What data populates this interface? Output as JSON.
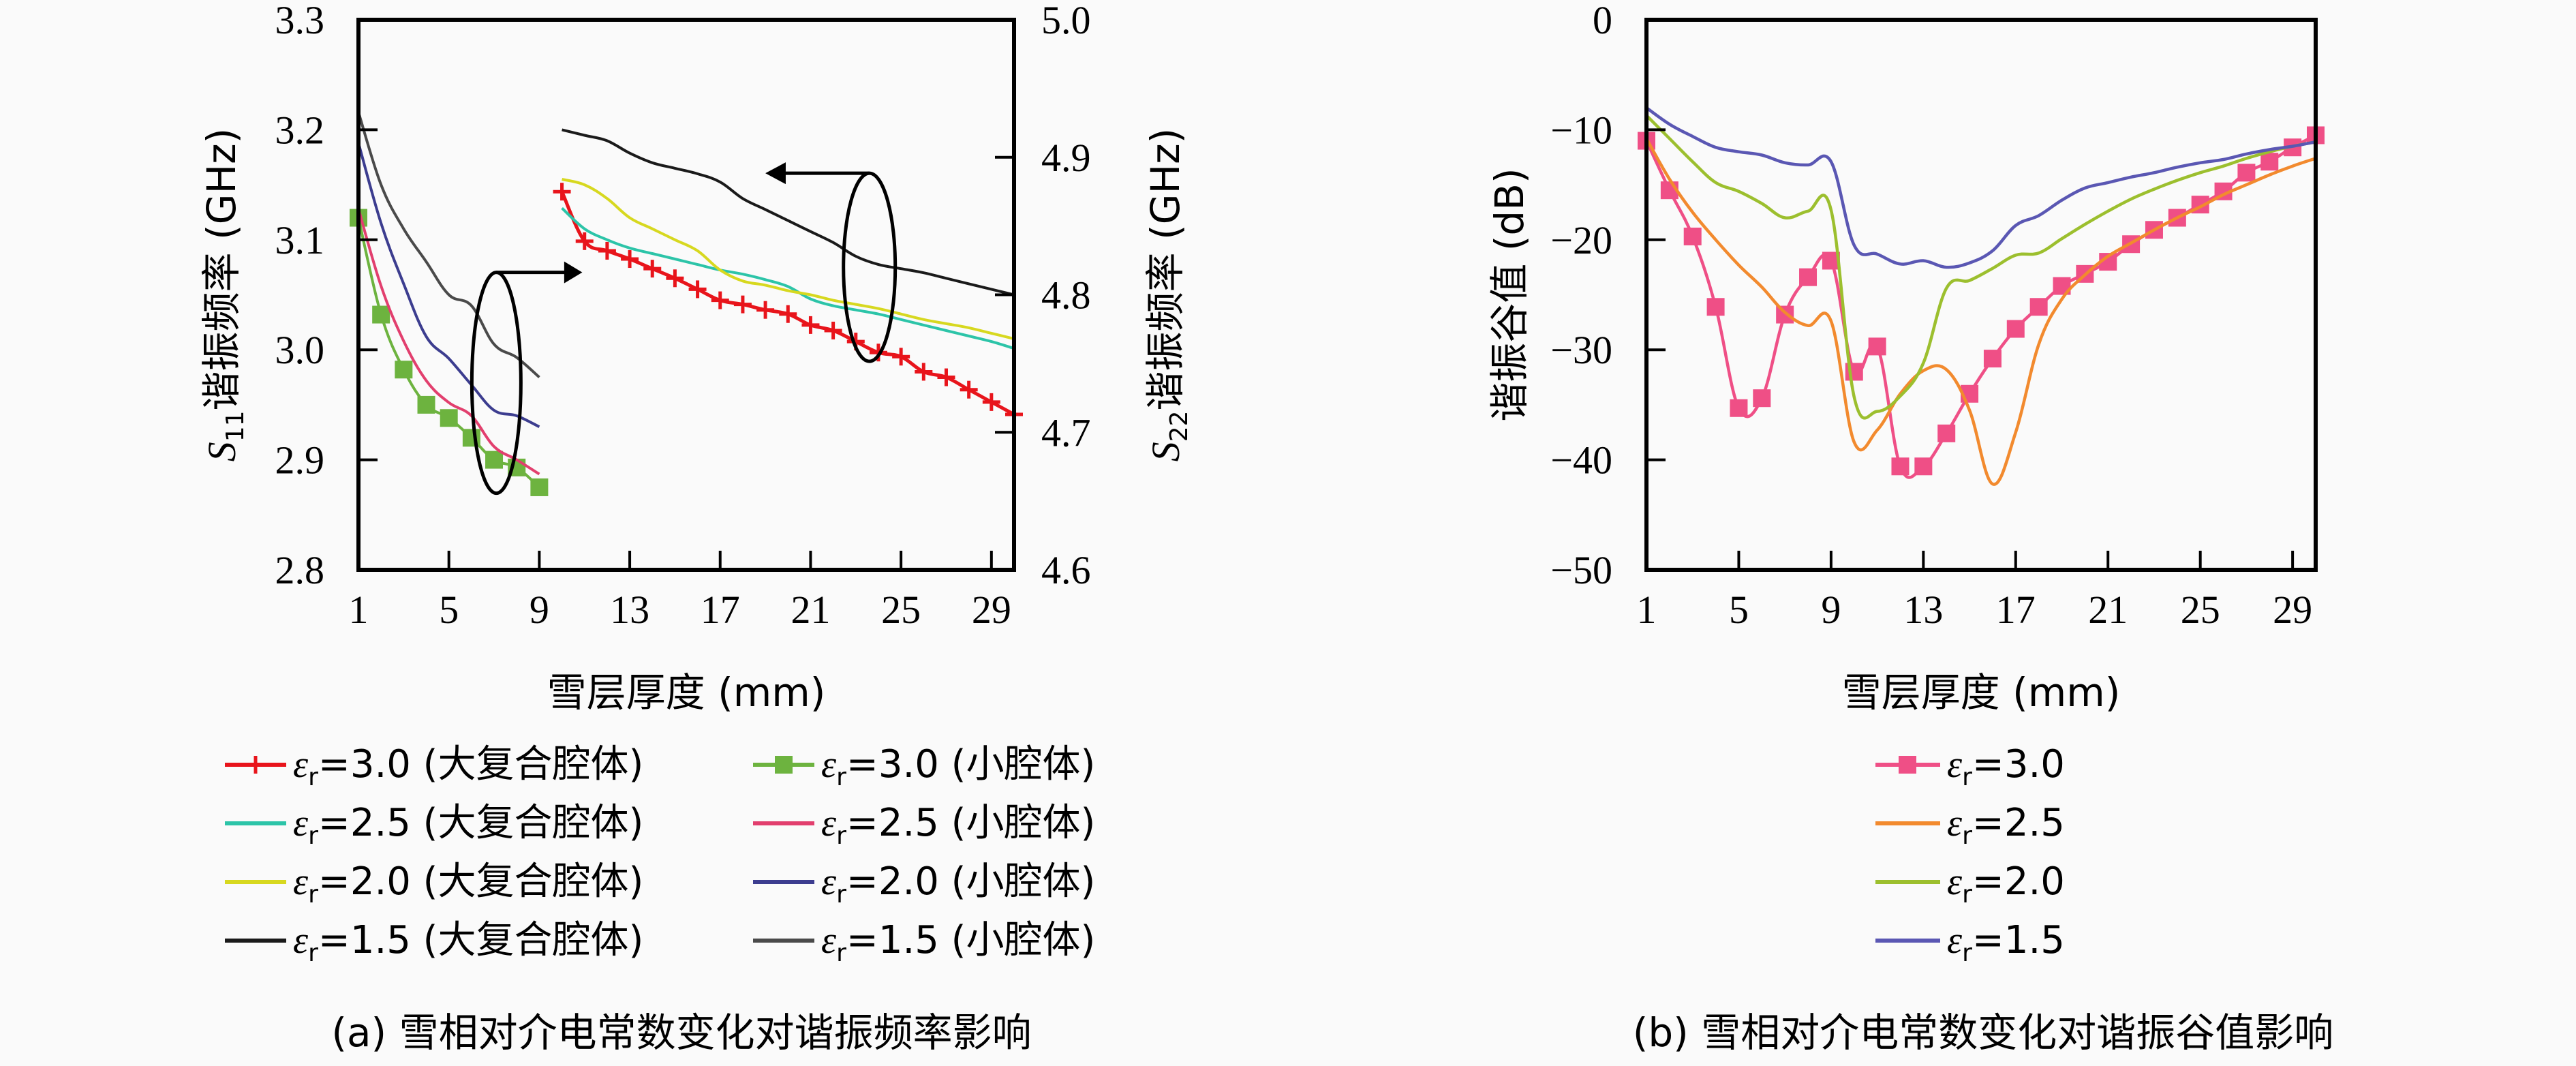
{
  "figure": {
    "caption_a": "(a) 雪相对介电常数变化对谐振频率影响",
    "caption_b": "(b) 雪相对介电常数变化对谐振谷值影响"
  },
  "chart_data": [
    {
      "id": "a",
      "type": "line",
      "title": "",
      "xlabel": "雪层厚度 (mm)",
      "ylabel_left": "S11 谐振频率 (GHz)",
      "ylabel_left_sub": "11",
      "ylabel_left_main": "谐振频率 (GHz)",
      "ylabel_right": "S22 谐振频率 (GHz)",
      "ylabel_right_sub": "22",
      "ylabel_right_main": "谐振频率 (GHz)",
      "xlim": [
        1,
        30
      ],
      "ylim_left": [
        2.8,
        3.3
      ],
      "ylim_right": [
        4.6,
        5.0
      ],
      "xticks": [
        1,
        5,
        9,
        13,
        17,
        21,
        25,
        29
      ],
      "yticks_left": [
        "2.8",
        "2.9",
        "3.0",
        "3.1",
        "3.2",
        "3.3"
      ],
      "yticks_right": [
        "4.6",
        "4.7",
        "4.8",
        "4.9",
        "5.0"
      ],
      "grid": false,
      "legend_position": "bottom",
      "annotations": [
        {
          "text": "ellipse-arrow-right",
          "meaning": "small-cavity curves read on right axis? arrow points right"
        },
        {
          "text": "ellipse-arrow-left",
          "meaning": "large-cavity curves arrow points left"
        }
      ],
      "series": [
        {
          "name": "εr=3.0 (大复合腔体)",
          "eps": "3.0",
          "cavity": "(大复合腔体)",
          "axis": "right",
          "color": "#e8141b",
          "marker": "plus",
          "x": [
            10,
            11,
            12,
            13,
            14,
            15,
            16,
            17,
            18,
            19,
            20,
            21,
            22,
            23,
            24,
            25,
            26,
            27,
            28,
            29,
            30
          ],
          "y": [
            4.875,
            4.839,
            4.832,
            4.826,
            4.819,
            4.812,
            4.804,
            4.796,
            4.793,
            4.789,
            4.786,
            4.778,
            4.774,
            4.766,
            4.758,
            4.755,
            4.744,
            4.74,
            4.731,
            4.722,
            4.713
          ]
        },
        {
          "name": "εr=2.5 (大复合腔体)",
          "eps": "2.5",
          "cavity": "(大复合腔体)",
          "axis": "right",
          "color": "#2cc4a8",
          "marker": "none",
          "x": [
            10,
            11,
            12,
            13,
            14,
            15,
            16,
            17,
            18,
            19,
            20,
            21,
            22,
            23,
            24,
            25,
            26,
            27,
            28,
            29,
            30
          ],
          "y": [
            4.863,
            4.848,
            4.84,
            4.834,
            4.83,
            4.826,
            4.822,
            4.818,
            4.815,
            4.811,
            4.806,
            4.797,
            4.792,
            4.789,
            4.786,
            4.782,
            4.778,
            4.774,
            4.77,
            4.766,
            4.761
          ]
        },
        {
          "name": "εr=2.0 (大复合腔体)",
          "eps": "2.0",
          "cavity": "(大复合腔体)",
          "axis": "right",
          "color": "#d7d81f",
          "marker": "none",
          "x": [
            10,
            11,
            12,
            13,
            14,
            15,
            16,
            17,
            18,
            19,
            20,
            21,
            22,
            23,
            24,
            25,
            26,
            27,
            28,
            29,
            30
          ],
          "y": [
            4.884,
            4.88,
            4.87,
            4.856,
            4.848,
            4.84,
            4.832,
            4.818,
            4.81,
            4.807,
            4.803,
            4.8,
            4.796,
            4.793,
            4.79,
            4.786,
            4.782,
            4.779,
            4.776,
            4.772,
            4.768
          ]
        },
        {
          "name": "εr=1.5 (大复合腔体)",
          "eps": "1.5",
          "cavity": "(大复合腔体)",
          "axis": "right",
          "color": "#1a1a1a",
          "marker": "none",
          "x": [
            10,
            11,
            12,
            13,
            14,
            15,
            16,
            17,
            18,
            19,
            20,
            21,
            22,
            23,
            24,
            25,
            26,
            27,
            28,
            29,
            30
          ],
          "y": [
            4.92,
            4.916,
            4.912,
            4.903,
            4.896,
            4.892,
            4.888,
            4.882,
            4.87,
            4.862,
            4.854,
            4.846,
            4.838,
            4.828,
            4.822,
            4.819,
            4.816,
            4.812,
            4.808,
            4.804,
            4.8
          ]
        },
        {
          "name": "εr=3.0 (小腔体)",
          "eps": "3.0",
          "cavity": "(小腔体)",
          "axis": "left",
          "color": "#6db33f",
          "marker": "square",
          "x": [
            1,
            2,
            3,
            4,
            5,
            6,
            7,
            8,
            9
          ],
          "y": [
            3.12,
            3.032,
            2.982,
            2.95,
            2.938,
            2.92,
            2.9,
            2.893,
            2.875
          ]
        },
        {
          "name": "εr=2.5 (小腔体)",
          "eps": "2.5",
          "cavity": "(小腔体)",
          "axis": "left",
          "color": "#e23f6e",
          "marker": "none",
          "x": [
            1,
            2,
            3,
            4,
            5,
            6,
            7,
            8,
            9
          ],
          "y": [
            3.128,
            3.058,
            3.008,
            2.972,
            2.952,
            2.94,
            2.912,
            2.9,
            2.887
          ]
        },
        {
          "name": "εr=2.0 (小腔体)",
          "eps": "2.0",
          "cavity": "(小腔体)",
          "axis": "left",
          "color": "#3c3d8f",
          "marker": "none",
          "x": [
            1,
            2,
            3,
            4,
            5,
            6,
            7,
            8,
            9
          ],
          "y": [
            3.188,
            3.115,
            3.06,
            3.012,
            2.992,
            2.968,
            2.945,
            2.94,
            2.93
          ]
        },
        {
          "name": "εr=1.5 (小腔体)",
          "eps": "1.5",
          "cavity": "(小腔体)",
          "axis": "left",
          "color": "#4a4a4a",
          "marker": "none",
          "x": [
            1,
            2,
            3,
            4,
            5,
            6,
            7,
            8,
            9
          ],
          "y": [
            3.216,
            3.15,
            3.11,
            3.08,
            3.05,
            3.04,
            3.005,
            2.993,
            2.975
          ]
        }
      ]
    },
    {
      "id": "b",
      "type": "line",
      "title": "",
      "xlabel": "雪层厚度 (mm)",
      "ylabel": "谐振谷值 (dB)",
      "xlim": [
        1,
        30
      ],
      "ylim": [
        -50,
        0
      ],
      "xticks": [
        1,
        5,
        9,
        13,
        17,
        21,
        25,
        29
      ],
      "yticks": [
        "−50",
        "−40",
        "−30",
        "−20",
        "−10",
        "0"
      ],
      "grid": false,
      "legend_position": "bottom",
      "series": [
        {
          "name": "εr=3.0",
          "eps": "3.0",
          "color": "#ef4f86",
          "marker": "square",
          "x": [
            1,
            2,
            3,
            4,
            5,
            6,
            7,
            8,
            9,
            10,
            11,
            12,
            13,
            14,
            15,
            16,
            17,
            18,
            19,
            20,
            21,
            22,
            23,
            24,
            25,
            26,
            27,
            28,
            29,
            30
          ],
          "y": [
            -11,
            -15.5,
            -19.7,
            -26.1,
            -35.3,
            -34.4,
            -26.8,
            -23.4,
            -21.9,
            -32.0,
            -29.7,
            -40.6,
            -40.6,
            -37.6,
            -34.0,
            -30.8,
            -28.1,
            -26.1,
            -24.2,
            -23.1,
            -22.0,
            -20.4,
            -19.1,
            -18.0,
            -16.8,
            -15.6,
            -13.9,
            -12.9,
            -11.6,
            -10.5
          ]
        },
        {
          "name": "εr=2.5",
          "eps": "2.5",
          "color": "#f28a2e",
          "marker": "none",
          "x": [
            1,
            2,
            3,
            4,
            5,
            6,
            7,
            8,
            9,
            10,
            11,
            12,
            13,
            14,
            15,
            16,
            17,
            18,
            19,
            20,
            21,
            22,
            23,
            24,
            25,
            26,
            27,
            28,
            29,
            30
          ],
          "y": [
            -10.8,
            -14.5,
            -17.5,
            -20.0,
            -22.3,
            -24.3,
            -26.6,
            -27.8,
            -27.4,
            -38.4,
            -37.3,
            -34.0,
            -31.9,
            -31.8,
            -35.5,
            -42.2,
            -37.5,
            -29.5,
            -25.4,
            -23.2,
            -21.5,
            -20.3,
            -19.1,
            -18.0,
            -17.0,
            -15.9,
            -15.0,
            -14.1,
            -13.3,
            -12.6
          ]
        },
        {
          "name": "εr=2.0",
          "eps": "2.0",
          "color": "#9cbf2e",
          "marker": "none",
          "x": [
            1,
            2,
            3,
            4,
            5,
            6,
            7,
            8,
            9,
            10,
            11,
            12,
            13,
            14,
            15,
            16,
            17,
            18,
            19,
            20,
            21,
            22,
            23,
            24,
            25,
            26,
            27,
            28,
            29,
            30
          ],
          "y": [
            -8.7,
            -10.8,
            -12.9,
            -14.8,
            -15.6,
            -16.7,
            -18.0,
            -17.4,
            -17.3,
            -34.3,
            -35.6,
            -34.2,
            -31.2,
            -24.4,
            -23.7,
            -22.6,
            -21.4,
            -21.2,
            -19.9,
            -18.6,
            -17.4,
            -16.3,
            -15.4,
            -14.6,
            -13.9,
            -13.3,
            -12.6,
            -12.0,
            -11.5,
            -11.1
          ]
        },
        {
          "name": "εr=1.5",
          "eps": "1.5",
          "color": "#5a57b3",
          "marker": "none",
          "x": [
            1,
            2,
            3,
            4,
            5,
            6,
            7,
            8,
            9,
            10,
            11,
            12,
            13,
            14,
            15,
            16,
            17,
            18,
            19,
            20,
            21,
            22,
            23,
            24,
            25,
            26,
            27,
            28,
            29,
            30
          ],
          "y": [
            -8.0,
            -9.5,
            -10.6,
            -11.6,
            -12.0,
            -12.3,
            -13.0,
            -13.2,
            -12.9,
            -20.5,
            -21.3,
            -22.2,
            -21.9,
            -22.5,
            -22.1,
            -21.0,
            -18.7,
            -17.8,
            -16.4,
            -15.3,
            -14.8,
            -14.3,
            -13.9,
            -13.4,
            -13.0,
            -12.7,
            -12.2,
            -11.8,
            -11.5,
            -11.1
          ]
        }
      ]
    }
  ]
}
